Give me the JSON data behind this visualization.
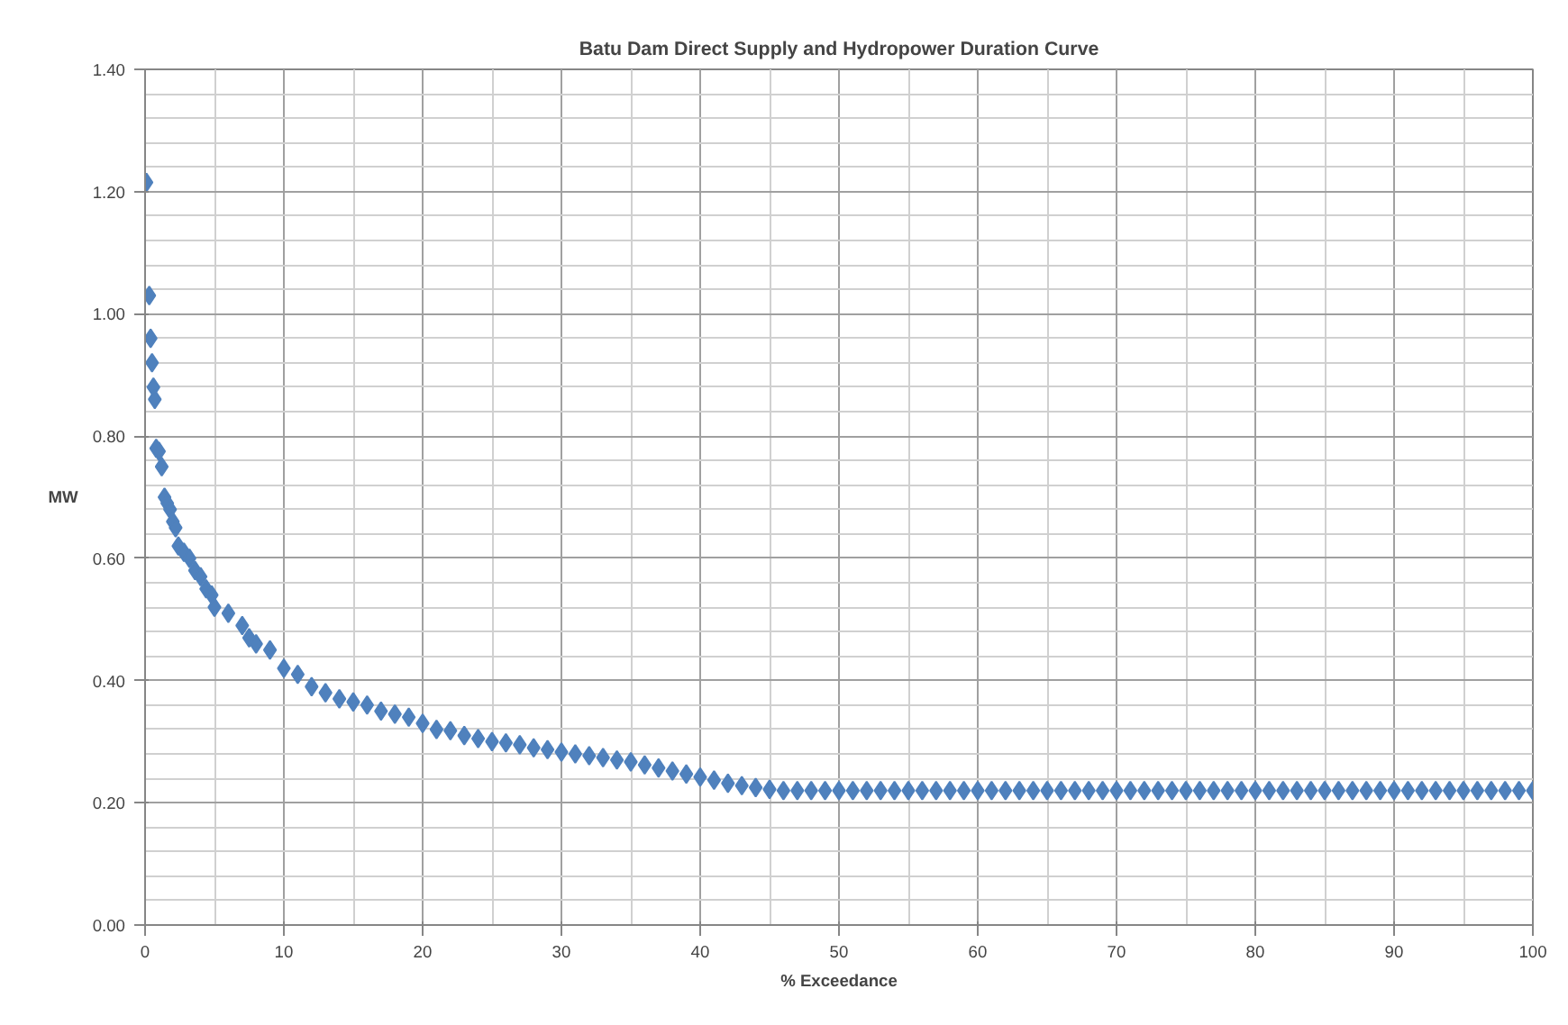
{
  "chart_data": {
    "type": "scatter",
    "title": "Batu Dam Direct Supply and Hydropower Duration Curve",
    "xlabel": "% Exceedance",
    "ylabel": "MW",
    "x": [
      0.1,
      0.3,
      0.4,
      0.5,
      0.6,
      0.7,
      0.8,
      1.0,
      1.2,
      1.4,
      1.6,
      1.8,
      2.0,
      2.2,
      2.4,
      2.8,
      3.2,
      3.6,
      4.0,
      4.4,
      4.8,
      5,
      6,
      7,
      7.5,
      8,
      9,
      10,
      11,
      12,
      13,
      14,
      15,
      16,
      17,
      18,
      19,
      20,
      21,
      22,
      23,
      24,
      25,
      26,
      27,
      28,
      29,
      30,
      31,
      32,
      33,
      34,
      35,
      36,
      37,
      38,
      39,
      40,
      41,
      42,
      43,
      44,
      45,
      46,
      47,
      48,
      49,
      50,
      51,
      52,
      53,
      54,
      55,
      56,
      57,
      58,
      59,
      60,
      61,
      62,
      63,
      64,
      65,
      66,
      67,
      68,
      69,
      70,
      71,
      72,
      73,
      74,
      75,
      76,
      77,
      78,
      79,
      80,
      81,
      82,
      83,
      84,
      85,
      86,
      87,
      88,
      89,
      90,
      91,
      92,
      93,
      94,
      95,
      96,
      97,
      98,
      99,
      100
    ],
    "series": [
      {
        "color": "#4f81bd",
        "values": [
          1.215,
          1.03,
          0.96,
          0.92,
          0.88,
          0.86,
          0.78,
          0.775,
          0.75,
          0.7,
          0.69,
          0.68,
          0.66,
          0.65,
          0.62,
          0.61,
          0.6,
          0.58,
          0.57,
          0.55,
          0.54,
          0.52,
          0.51,
          0.49,
          0.47,
          0.46,
          0.45,
          0.42,
          0.41,
          0.39,
          0.38,
          0.37,
          0.365,
          0.36,
          0.35,
          0.345,
          0.34,
          0.33,
          0.32,
          0.318,
          0.31,
          0.305,
          0.3,
          0.298,
          0.295,
          0.29,
          0.287,
          0.283,
          0.28,
          0.277,
          0.274,
          0.27,
          0.267,
          0.262,
          0.257,
          0.252,
          0.247,
          0.242,
          0.237,
          0.232,
          0.228,
          0.225,
          0.222,
          0.22,
          0.22,
          0.22,
          0.22,
          0.22,
          0.22,
          0.22,
          0.22,
          0.22,
          0.22,
          0.22,
          0.22,
          0.22,
          0.22,
          0.22,
          0.22,
          0.22,
          0.22,
          0.22,
          0.22,
          0.22,
          0.22,
          0.22,
          0.22,
          0.22,
          0.22,
          0.22,
          0.22,
          0.22,
          0.22,
          0.22,
          0.22,
          0.22,
          0.22,
          0.22,
          0.22,
          0.22,
          0.22,
          0.22,
          0.22,
          0.22,
          0.22,
          0.22,
          0.22,
          0.22,
          0.22,
          0.22,
          0.22,
          0.22,
          0.22,
          0.22,
          0.22,
          0.22,
          0.22,
          0.22
        ]
      }
    ],
    "xlim": [
      0,
      100
    ],
    "ylim": [
      0,
      1.4
    ],
    "xticks": [
      0,
      10,
      20,
      30,
      40,
      50,
      60,
      70,
      80,
      90,
      100
    ],
    "yticks": [
      {
        "value": 0,
        "label": "0.00"
      },
      {
        "value": 0.2,
        "label": "0.20"
      },
      {
        "value": 0.4,
        "label": "0.40"
      },
      {
        "value": 0.6,
        "label": "0.60"
      },
      {
        "value": 0.8,
        "label": "0.80"
      },
      {
        "value": 1.0,
        "label": "1.00"
      },
      {
        "value": 1.2,
        "label": "1.20"
      },
      {
        "value": 1.4,
        "label": "1.40"
      }
    ],
    "grid": true,
    "marker": "diamond"
  }
}
